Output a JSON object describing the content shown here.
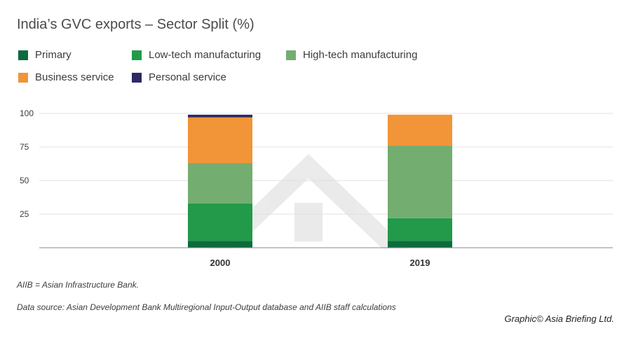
{
  "chart_data": {
    "type": "bar",
    "stacked": true,
    "title": "India’s GVC exports – Sector Split (%)",
    "categories": [
      "2000",
      "2019"
    ],
    "series": [
      {
        "name": "Primary",
        "color": "#0c6a3e",
        "values": [
          5,
          5
        ]
      },
      {
        "name": "Low-tech manufacturing",
        "color": "#229a4a",
        "values": [
          28,
          17
        ]
      },
      {
        "name": "High-tech manufacturing",
        "color": "#74ad70",
        "values": [
          30,
          54
        ]
      },
      {
        "name": "Business service",
        "color": "#f29438",
        "values": [
          34,
          23
        ]
      },
      {
        "name": "Personal service",
        "color": "#2b2a62",
        "values": [
          2,
          0
        ]
      }
    ],
    "yticks": [
      25,
      50,
      75,
      100
    ],
    "ylim": [
      0,
      100
    ],
    "grid": true,
    "legend_position": "top-left"
  },
  "notes": {
    "abbreviation": "AIIB = Asian Infrastructure Bank.",
    "source": "Data source: Asian Development Bank Multiregional Input-Output database and AIIB staff calculations",
    "credit": "Graphic© Asia Briefing Ltd."
  }
}
